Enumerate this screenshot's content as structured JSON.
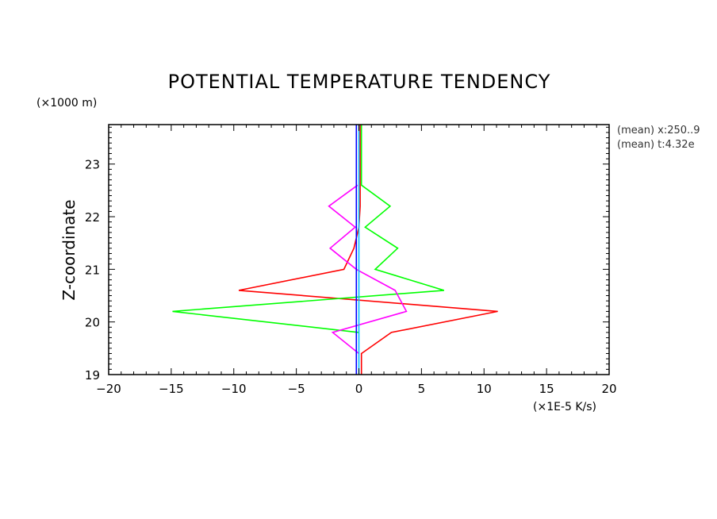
{
  "chart_data": {
    "type": "line",
    "title": "POTENTIAL TEMPERATURE TENDENCY",
    "ylabel": "Z-coordinate",
    "yunit": "(×1000 m)",
    "xunit": "(×1E-5 K/s)",
    "xlim": [
      -20,
      20
    ],
    "ylim": [
      19,
      23.75
    ],
    "xticks": [
      -20,
      -15,
      -10,
      -5,
      0,
      5,
      10,
      15,
      20
    ],
    "xtick_labels": [
      "−20",
      "−15",
      "−10",
      "−5",
      "0",
      "5",
      "10",
      "15",
      "20"
    ],
    "yticks": [
      19,
      20,
      21,
      22,
      23
    ],
    "ytick_labels": [
      "19",
      "20",
      "21",
      "22",
      "23"
    ],
    "info": [
      "(mean) x:250..9",
      "(mean) t:4.32e"
    ],
    "series": [
      {
        "color": "#ff0000",
        "points": [
          [
            0.2,
            19.0
          ],
          [
            0.2,
            19.4
          ],
          [
            2.6,
            19.8
          ],
          [
            11.1,
            20.2
          ],
          [
            -9.6,
            20.6
          ],
          [
            -1.2,
            21.0
          ],
          [
            -0.4,
            21.4
          ],
          [
            0.0,
            21.8
          ],
          [
            0.1,
            22.2
          ],
          [
            0.1,
            23.75
          ]
        ]
      },
      {
        "color": "#00ff00",
        "points": [
          [
            0.0,
            19.8
          ],
          [
            -14.9,
            20.2
          ],
          [
            6.8,
            20.6
          ],
          [
            1.3,
            21.0
          ],
          [
            3.1,
            21.4
          ],
          [
            0.5,
            21.8
          ],
          [
            2.5,
            22.2
          ],
          [
            0.2,
            22.6
          ],
          [
            0.2,
            23.75
          ]
        ]
      },
      {
        "color": "#ff00ff",
        "points": [
          [
            0.0,
            19.4
          ],
          [
            -2.1,
            19.8
          ],
          [
            3.8,
            20.2
          ],
          [
            2.9,
            20.6
          ],
          [
            -0.2,
            21.0
          ],
          [
            -2.3,
            21.4
          ],
          [
            -0.3,
            21.8
          ],
          [
            -2.4,
            22.2
          ],
          [
            -0.1,
            22.6
          ]
        ]
      },
      {
        "color": "#00c0ff",
        "points": [
          [
            0.0,
            19.0
          ],
          [
            0.0,
            23.75
          ]
        ]
      },
      {
        "color": "#0000ff",
        "points": [
          [
            -0.2,
            19.0
          ],
          [
            -0.2,
            23.75
          ]
        ]
      }
    ]
  }
}
